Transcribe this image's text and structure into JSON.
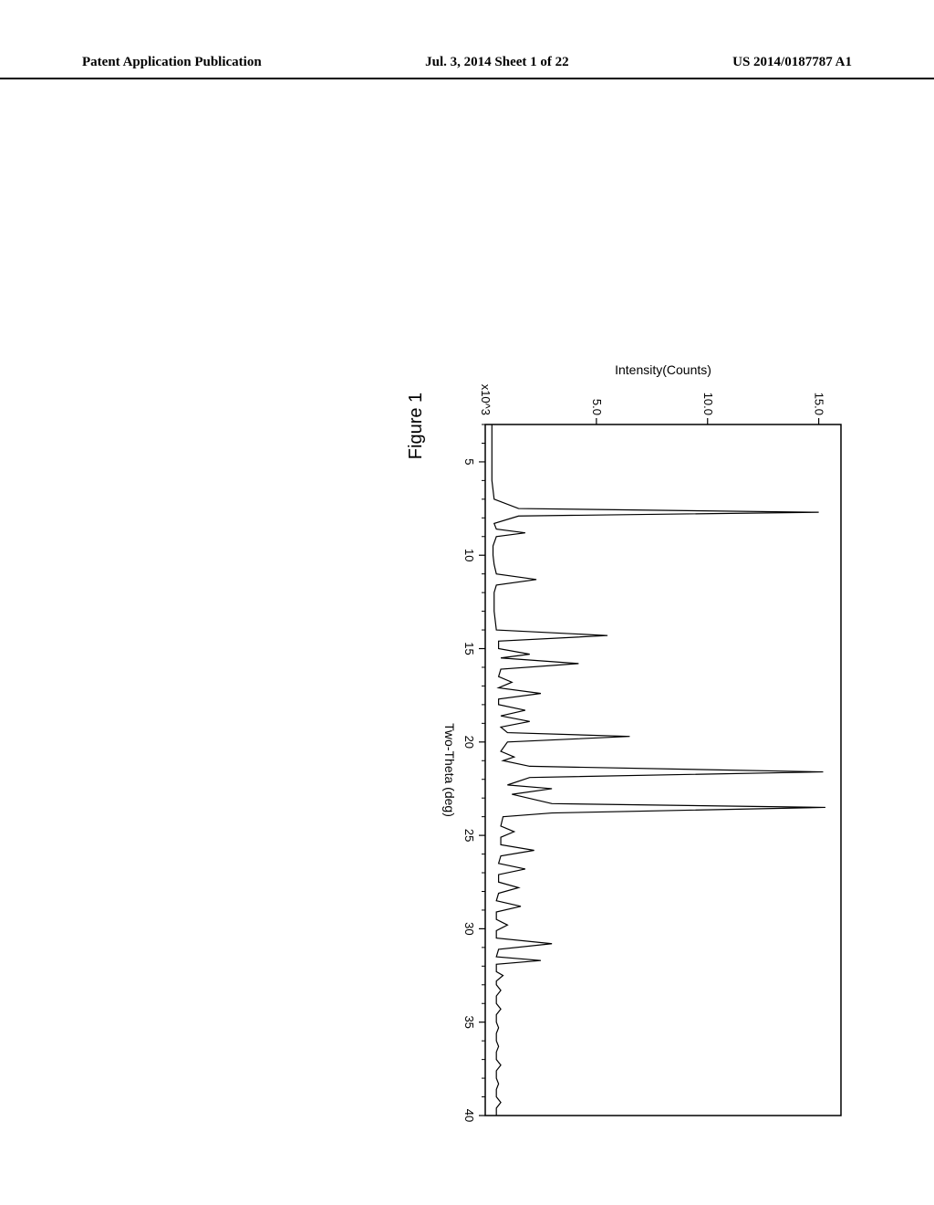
{
  "header": {
    "left": "Patent Application Publication",
    "center": "Jul. 3, 2014   Sheet 1 of 22",
    "right": "US 2014/0187787 A1"
  },
  "figure": {
    "title": "Figure 1",
    "chart": {
      "type": "line",
      "xlabel": "Two-Theta (deg)",
      "ylabel": "Intensity(Counts)",
      "xlim": [
        3,
        40
      ],
      "ylim": [
        0,
        16
      ],
      "xticks": [
        5,
        10,
        15,
        20,
        25,
        30,
        35,
        40
      ],
      "yticks": [
        5.0,
        10.0,
        15.0
      ],
      "ytick_labels": [
        "5.0",
        "10.0",
        "15.0"
      ],
      "y_multiplier_label": "x10^3",
      "background_color": "#ffffff",
      "line_color": "#000000",
      "axis_color": "#000000",
      "text_color": "#000000",
      "line_width": 1.2,
      "label_fontsize": 14,
      "tick_fontsize": 13,
      "data": [
        [
          3.0,
          0.3
        ],
        [
          4.0,
          0.3
        ],
        [
          5.0,
          0.3
        ],
        [
          6.0,
          0.3
        ],
        [
          7.0,
          0.4
        ],
        [
          7.5,
          1.5
        ],
        [
          7.7,
          15.0
        ],
        [
          7.9,
          1.5
        ],
        [
          8.3,
          0.4
        ],
        [
          8.6,
          0.5
        ],
        [
          8.8,
          1.8
        ],
        [
          9.0,
          0.5
        ],
        [
          9.5,
          0.35
        ],
        [
          10.0,
          0.35
        ],
        [
          10.5,
          0.4
        ],
        [
          11.0,
          0.5
        ],
        [
          11.3,
          2.3
        ],
        [
          11.6,
          0.5
        ],
        [
          12.0,
          0.4
        ],
        [
          12.5,
          0.4
        ],
        [
          13.0,
          0.4
        ],
        [
          14.0,
          0.5
        ],
        [
          14.3,
          5.5
        ],
        [
          14.6,
          0.6
        ],
        [
          15.0,
          0.6
        ],
        [
          15.3,
          2.0
        ],
        [
          15.5,
          0.7
        ],
        [
          15.8,
          4.2
        ],
        [
          16.1,
          0.7
        ],
        [
          16.5,
          0.6
        ],
        [
          16.8,
          1.2
        ],
        [
          17.1,
          0.6
        ],
        [
          17.4,
          2.5
        ],
        [
          17.7,
          0.6
        ],
        [
          18.0,
          0.6
        ],
        [
          18.3,
          1.8
        ],
        [
          18.6,
          0.7
        ],
        [
          18.9,
          2.0
        ],
        [
          19.2,
          0.7
        ],
        [
          19.5,
          1.0
        ],
        [
          19.7,
          6.5
        ],
        [
          20.0,
          1.0
        ],
        [
          20.5,
          0.7
        ],
        [
          20.8,
          1.3
        ],
        [
          21.0,
          0.8
        ],
        [
          21.3,
          2.0
        ],
        [
          21.6,
          15.2
        ],
        [
          21.9,
          2.0
        ],
        [
          22.3,
          1.0
        ],
        [
          22.5,
          3.0
        ],
        [
          22.8,
          1.2
        ],
        [
          23.3,
          3.0
        ],
        [
          23.5,
          15.3
        ],
        [
          23.8,
          3.0
        ],
        [
          24.0,
          0.8
        ],
        [
          24.5,
          0.7
        ],
        [
          24.8,
          1.3
        ],
        [
          25.1,
          0.7
        ],
        [
          25.5,
          0.7
        ],
        [
          25.8,
          2.2
        ],
        [
          26.1,
          0.7
        ],
        [
          26.5,
          0.6
        ],
        [
          26.8,
          1.8
        ],
        [
          27.1,
          0.6
        ],
        [
          27.5,
          0.6
        ],
        [
          27.8,
          1.5
        ],
        [
          28.1,
          0.6
        ],
        [
          28.5,
          0.5
        ],
        [
          28.8,
          1.6
        ],
        [
          29.1,
          0.5
        ],
        [
          29.5,
          0.5
        ],
        [
          29.8,
          1.0
        ],
        [
          30.1,
          0.5
        ],
        [
          30.5,
          0.5
        ],
        [
          30.8,
          3.0
        ],
        [
          31.1,
          0.6
        ],
        [
          31.5,
          0.5
        ],
        [
          31.7,
          2.5
        ],
        [
          31.9,
          0.5
        ],
        [
          32.3,
          0.5
        ],
        [
          32.5,
          0.8
        ],
        [
          32.8,
          0.5
        ],
        [
          33.0,
          0.5
        ],
        [
          33.3,
          0.7
        ],
        [
          33.6,
          0.5
        ],
        [
          34.0,
          0.5
        ],
        [
          34.3,
          0.7
        ],
        [
          34.6,
          0.5
        ],
        [
          35.0,
          0.5
        ],
        [
          35.3,
          0.6
        ],
        [
          35.6,
          0.5
        ],
        [
          36.0,
          0.5
        ],
        [
          36.3,
          0.6
        ],
        [
          36.6,
          0.5
        ],
        [
          37.0,
          0.5
        ],
        [
          37.3,
          0.7
        ],
        [
          37.6,
          0.5
        ],
        [
          38.0,
          0.5
        ],
        [
          38.3,
          0.6
        ],
        [
          38.6,
          0.5
        ],
        [
          39.0,
          0.5
        ],
        [
          39.3,
          0.7
        ],
        [
          39.6,
          0.5
        ],
        [
          40.0,
          0.5
        ]
      ]
    }
  }
}
